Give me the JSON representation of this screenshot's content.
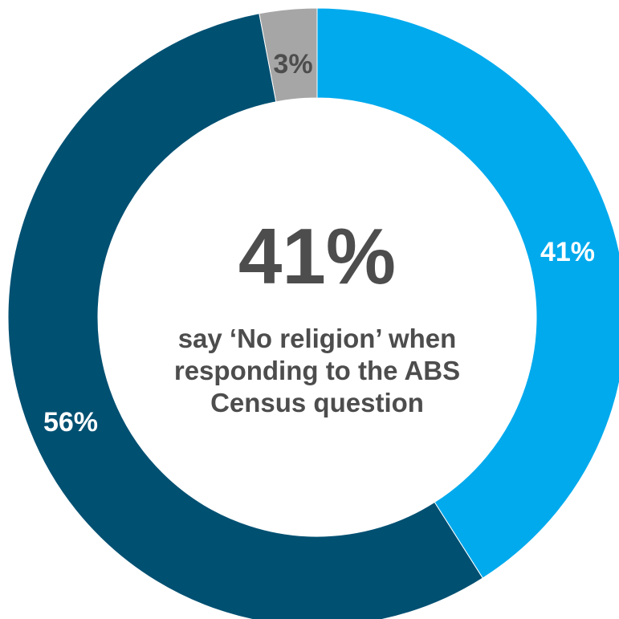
{
  "chart_data": {
    "type": "pie",
    "donut": true,
    "slices": [
      {
        "label": "41%",
        "value": 41,
        "color": "#00aaed"
      },
      {
        "label": "56%",
        "value": 56,
        "color": "#005072"
      },
      {
        "label": "3%",
        "value": 3,
        "color": "#a6a6a6"
      }
    ],
    "center": {
      "headline": "41%",
      "caption": "say ‘No religion’ when responding to the ABS Census question"
    },
    "label_colors": {
      "on_light": "#ffffff",
      "on_gray": "#4d4d4d"
    }
  }
}
